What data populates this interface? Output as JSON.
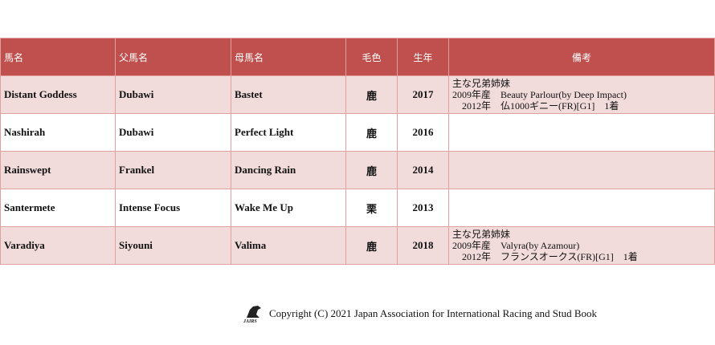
{
  "table": {
    "headers": [
      "馬名",
      "父馬名",
      "母馬名",
      "毛色",
      "生年",
      "備考"
    ],
    "rows": [
      [
        "Distant Goddess",
        "Dubawi",
        "Bastet",
        "鹿",
        "2017",
        [
          "主な兄弟姉妹",
          "2009年産　Beauty Parlour(by Deep Impact)",
          "　2012年　仏1000ギニー(FR)[G1]　1着"
        ]
      ],
      [
        "Nashirah",
        "Dubawi",
        "Perfect Light",
        "鹿",
        "2016",
        []
      ],
      [
        "Rainswept",
        "Frankel",
        "Dancing Rain",
        "鹿",
        "2014",
        []
      ],
      [
        "Santermete",
        "Intense Focus",
        "Wake Me Up",
        "栗",
        "2013",
        []
      ],
      [
        "Varadiya",
        "Siyouni",
        "Valima",
        "鹿",
        "2018",
        [
          "主な兄弟姉妹",
          "2009年産　Valyra(by Azamour)",
          "　2012年　フランスオークス(FR)[G1]　1着"
        ]
      ]
    ]
  },
  "footer": {
    "logo": "JAIRS",
    "copyright": "Copyright (C) 2021 Japan Association for International Racing and Stud Book"
  }
}
